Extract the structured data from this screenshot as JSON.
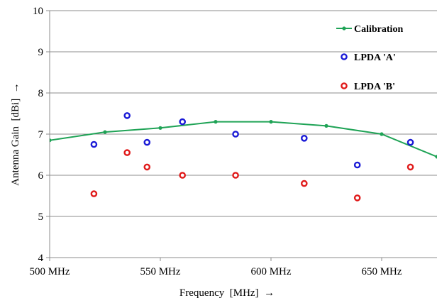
{
  "chart_data": {
    "type": "line",
    "xlabel": "Frequency",
    "xlabel_unit": "[MHz]",
    "xlabel_arrow": "→",
    "ylabel": "Antenna Gain",
    "ylabel_unit": "[dBi]",
    "ylabel_arrow": "→",
    "xlim": [
      500,
      675
    ],
    "ylim": [
      4,
      10
    ],
    "xticks": [
      {
        "value": 500,
        "label": "500 MHz"
      },
      {
        "value": 550,
        "label": "550 MHz"
      },
      {
        "value": 600,
        "label": "600 MHz"
      },
      {
        "value": 650,
        "label": "650 MHz"
      }
    ],
    "yticks": [
      4,
      5,
      6,
      7,
      8,
      9,
      10
    ],
    "grid": "horizontal",
    "legend_position": "top-right",
    "series": [
      {
        "name": "Calibration",
        "kind": "line-markers",
        "color": "#1fa356",
        "x": [
          500,
          525,
          550,
          575,
          600,
          625,
          650,
          675
        ],
        "y": [
          6.85,
          7.05,
          7.15,
          7.3,
          7.3,
          7.2,
          7.0,
          6.45
        ]
      },
      {
        "name": "LPDA 'A'",
        "kind": "scatter-ring",
        "color": "#1a1ad6",
        "x": [
          520,
          535,
          544,
          560,
          584,
          615,
          639,
          663
        ],
        "y": [
          6.75,
          7.45,
          6.8,
          7.3,
          7.0,
          6.9,
          6.25,
          6.8
        ]
      },
      {
        "name": "LPDA 'B'",
        "kind": "scatter-ring",
        "color": "#e01a1a",
        "x": [
          520,
          535,
          544,
          560,
          584,
          615,
          639,
          663
        ],
        "y": [
          5.55,
          6.55,
          6.2,
          6.0,
          6.0,
          5.8,
          5.45,
          6.2
        ]
      }
    ]
  }
}
